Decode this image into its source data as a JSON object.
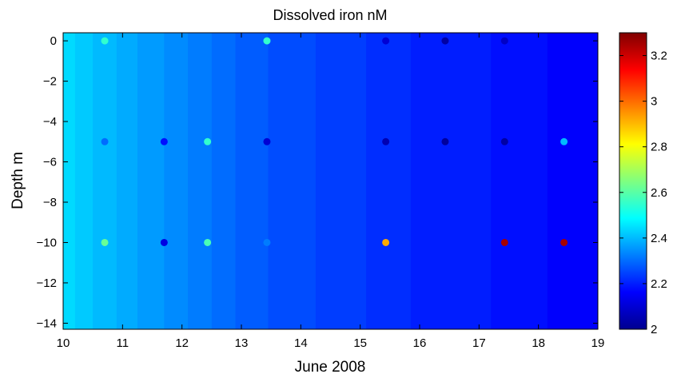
{
  "chart_data": {
    "type": "heatmap",
    "title": "Dissolved iron nM",
    "xlabel": "June 2008",
    "ylabel": "Depth m",
    "xlim": [
      10,
      19
    ],
    "ylim": [
      -14.3,
      0.4
    ],
    "xticks": [
      10,
      11,
      12,
      13,
      14,
      15,
      16,
      17,
      18,
      19
    ],
    "yticks": [
      0,
      -2,
      -4,
      -6,
      -8,
      -10,
      -12,
      -14
    ],
    "colorbar": {
      "range": [
        2,
        3.3
      ],
      "ticks": [
        "2",
        "2.2",
        "2.4",
        "2.6",
        "2.8",
        "3",
        "3.2"
      ]
    },
    "field_bands": [
      {
        "x": [
          10.0,
          10.2
        ],
        "value": 2.44
      },
      {
        "x": [
          10.2,
          10.5
        ],
        "value": 2.42
      },
      {
        "x": [
          10.5,
          10.9
        ],
        "value": 2.4
      },
      {
        "x": [
          10.9,
          11.25
        ],
        "value": 2.38
      },
      {
        "x": [
          11.25,
          11.7
        ],
        "value": 2.36
      },
      {
        "x": [
          11.7,
          12.1
        ],
        "value": 2.34
      },
      {
        "x": [
          12.1,
          12.5
        ],
        "value": 2.32
      },
      {
        "x": [
          12.5,
          12.9
        ],
        "value": 2.3
      },
      {
        "x": [
          12.9,
          13.45
        ],
        "value": 2.28
      },
      {
        "x": [
          13.45,
          14.25
        ],
        "value": 2.26
      },
      {
        "x": [
          14.25,
          15.1
        ],
        "value": 2.24
      },
      {
        "x": [
          15.1,
          15.85
        ],
        "value": 2.22
      },
      {
        "x": [
          15.85,
          17.2
        ],
        "value": 2.2
      },
      {
        "x": [
          17.2,
          18.15
        ],
        "value": 2.18
      },
      {
        "x": [
          18.15,
          19.0
        ],
        "value": 2.16
      }
    ],
    "samples": [
      {
        "x": 10.7,
        "y": 0,
        "value": 2.55
      },
      {
        "x": 10.7,
        "y": -5,
        "value": 2.3
      },
      {
        "x": 10.7,
        "y": -10,
        "value": 2.62
      },
      {
        "x": 11.7,
        "y": -5,
        "value": 2.18
      },
      {
        "x": 11.7,
        "y": -10,
        "value": 2.12
      },
      {
        "x": 12.43,
        "y": -5,
        "value": 2.55
      },
      {
        "x": 12.43,
        "y": -10,
        "value": 2.58
      },
      {
        "x": 13.43,
        "y": 0,
        "value": 2.55
      },
      {
        "x": 13.43,
        "y": -5,
        "value": 2.1
      },
      {
        "x": 13.43,
        "y": -10,
        "value": 2.32
      },
      {
        "x": 15.43,
        "y": 0,
        "value": 2.1
      },
      {
        "x": 15.43,
        "y": -5,
        "value": 2.05
      },
      {
        "x": 15.43,
        "y": -10,
        "value": 2.92
      },
      {
        "x": 16.43,
        "y": 0,
        "value": 2.03
      },
      {
        "x": 16.43,
        "y": -5,
        "value": 2.02
      },
      {
        "x": 17.43,
        "y": 0,
        "value": 2.08
      },
      {
        "x": 17.43,
        "y": -5,
        "value": 2.03
      },
      {
        "x": 17.43,
        "y": -10,
        "value": 3.25
      },
      {
        "x": 18.43,
        "y": -5,
        "value": 2.4
      },
      {
        "x": 18.43,
        "y": -10,
        "value": 3.25
      }
    ]
  }
}
